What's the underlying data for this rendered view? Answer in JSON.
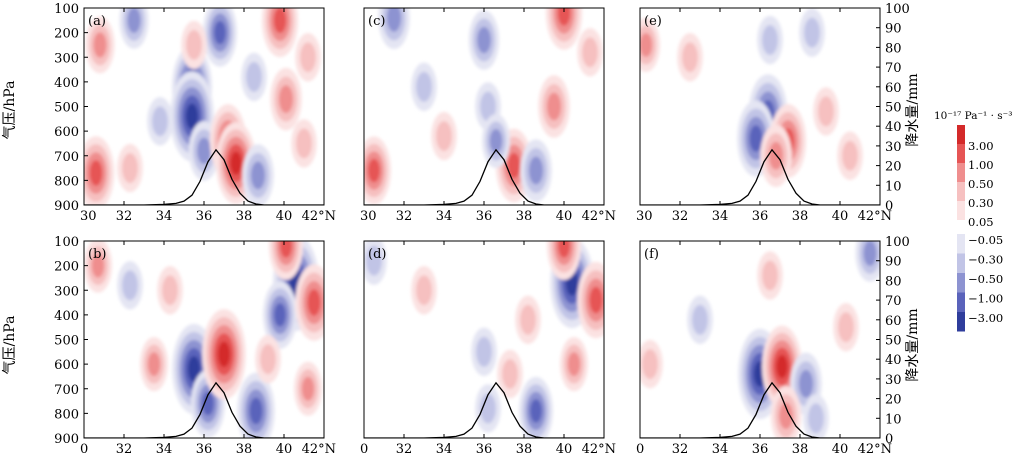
{
  "figure": {
    "y_axis_label": "气压/hPa",
    "right_axis_label": "降水量/mm",
    "colorbar_unit": "10⁻¹⁷ Pa⁻¹ · s⁻³"
  },
  "chart_data": {
    "type": "heatmap",
    "x_ticks": [
      30,
      32,
      34,
      36,
      38,
      40,
      42
    ],
    "x_tick_labels_top_row": [
      "30",
      "32",
      "34",
      "36",
      "38",
      "40",
      "42°N"
    ],
    "x_tick_labels_bottom_row": [
      "0",
      "32",
      "34",
      "36",
      "38",
      "40",
      "42°N"
    ],
    "pressure_ticks": [
      100,
      200,
      300,
      400,
      500,
      600,
      700,
      800,
      900
    ],
    "precip_ticks": [
      0,
      10,
      20,
      30,
      40,
      50,
      60,
      70,
      80,
      90,
      100
    ],
    "colorbar": {
      "positive": [
        {
          "label": "3.00",
          "color": "#d42a2a"
        },
        {
          "label": "1.00",
          "color": "#e65555"
        },
        {
          "label": "0.50",
          "color": "#ef8e8e"
        },
        {
          "label": "0.30",
          "color": "#f6c0c0"
        },
        {
          "label": "0.05",
          "color": "#fbe2e2"
        }
      ],
      "negative": [
        {
          "label": "−0.05",
          "color": "#e4e5f3"
        },
        {
          "label": "−0.30",
          "color": "#c1c4e6"
        },
        {
          "label": "−0.50",
          "color": "#8d93d1"
        },
        {
          "label": "−1.00",
          "color": "#5a63bb"
        },
        {
          "label": "−3.00",
          "color": "#2f3d9c"
        }
      ]
    },
    "panels": [
      {
        "label": "(a)",
        "row": 0,
        "col": 0,
        "precip": {
          "lat": [
            33.0,
            34.0,
            34.6,
            35.0,
            35.4,
            35.8,
            36.2,
            36.6,
            37.0,
            37.4,
            37.8,
            38.2,
            38.6,
            39.0
          ],
          "mm": [
            0,
            0.3,
            0.8,
            2,
            5,
            12,
            22,
            28,
            23,
            13,
            6,
            2,
            0.5,
            0
          ]
        },
        "anomalies": [
          {
            "lat": 32.5,
            "p": 150,
            "value": -0.6
          },
          {
            "lat": 30.8,
            "p": 250,
            "value": 0.6
          },
          {
            "lat": 30.6,
            "p": 770,
            "value": 1.2
          },
          {
            "lat": 32.3,
            "p": 750,
            "value": 0.3
          },
          {
            "lat": 33.8,
            "p": 560,
            "value": -0.3
          },
          {
            "lat": 35.4,
            "p": 420,
            "value": -1.5
          },
          {
            "lat": 35.4,
            "p": 540,
            "value": -1.8
          },
          {
            "lat": 36.0,
            "p": 680,
            "value": -0.7
          },
          {
            "lat": 37.2,
            "p": 640,
            "value": 1.2
          },
          {
            "lat": 37.6,
            "p": 730,
            "value": 1.5
          },
          {
            "lat": 36.8,
            "p": 200,
            "value": -1.0
          },
          {
            "lat": 38.7,
            "p": 780,
            "value": -0.8
          },
          {
            "lat": 40.1,
            "p": 470,
            "value": 0.8
          },
          {
            "lat": 39.8,
            "p": 150,
            "value": 1.2
          },
          {
            "lat": 41.2,
            "p": 300,
            "value": 0.3
          },
          {
            "lat": 41.0,
            "p": 650,
            "value": 0.3
          },
          {
            "lat": 35.5,
            "p": 250,
            "value": 0.3
          },
          {
            "lat": 38.5,
            "p": 380,
            "value": -0.3
          }
        ]
      },
      {
        "label": "(c)",
        "row": 0,
        "col": 1,
        "precip": {
          "lat": [
            33.0,
            34.0,
            34.6,
            35.0,
            35.4,
            35.8,
            36.2,
            36.6,
            37.0,
            37.4,
            37.8,
            38.2,
            38.6,
            39.0
          ],
          "mm": [
            0,
            0.3,
            0.8,
            2,
            5,
            12,
            22,
            28,
            23,
            13,
            6,
            2,
            0.5,
            0
          ]
        },
        "anomalies": [
          {
            "lat": 31.5,
            "p": 140,
            "value": -0.8
          },
          {
            "lat": 30.5,
            "p": 760,
            "value": 1.0
          },
          {
            "lat": 36.0,
            "p": 230,
            "value": -0.7
          },
          {
            "lat": 36.2,
            "p": 500,
            "value": -0.3
          },
          {
            "lat": 37.5,
            "p": 740,
            "value": 1.2
          },
          {
            "lat": 38.6,
            "p": 760,
            "value": -0.8
          },
          {
            "lat": 39.5,
            "p": 500,
            "value": 0.8
          },
          {
            "lat": 40.0,
            "p": 120,
            "value": 1.2
          },
          {
            "lat": 36.6,
            "p": 640,
            "value": -0.5
          },
          {
            "lat": 34.0,
            "p": 620,
            "value": 0.3
          },
          {
            "lat": 41.3,
            "p": 280,
            "value": 0.3
          },
          {
            "lat": 33.0,
            "p": 420,
            "value": -0.3
          }
        ]
      },
      {
        "label": "(e)",
        "row": 0,
        "col": 2,
        "precip": {
          "lat": [
            33.0,
            34.0,
            34.6,
            35.0,
            35.4,
            35.8,
            36.2,
            36.6,
            37.0,
            37.4,
            37.8,
            38.2,
            38.6,
            39.0
          ],
          "mm": [
            0,
            0.3,
            0.8,
            2,
            5,
            12,
            22,
            28,
            23,
            13,
            6,
            2,
            0.5,
            0
          ]
        },
        "anomalies": [
          {
            "lat": 30.3,
            "p": 250,
            "value": 0.5
          },
          {
            "lat": 36.4,
            "p": 530,
            "value": -1.4
          },
          {
            "lat": 35.8,
            "p": 630,
            "value": -1.3
          },
          {
            "lat": 37.4,
            "p": 640,
            "value": 1.2
          },
          {
            "lat": 36.8,
            "p": 700,
            "value": 0.8
          },
          {
            "lat": 36.5,
            "p": 230,
            "value": -0.3
          },
          {
            "lat": 32.5,
            "p": 300,
            "value": 0.3
          },
          {
            "lat": 39.3,
            "p": 520,
            "value": 0.3
          },
          {
            "lat": 40.5,
            "p": 700,
            "value": 0.3
          },
          {
            "lat": 38.6,
            "p": 200,
            "value": -0.3
          }
        ]
      },
      {
        "label": "(b)",
        "row": 1,
        "col": 0,
        "precip": {
          "lat": [
            33.0,
            34.0,
            34.6,
            35.0,
            35.4,
            35.8,
            36.2,
            36.6,
            37.0,
            37.4,
            37.8,
            38.2,
            38.6,
            39.0
          ],
          "mm": [
            0,
            0.3,
            0.8,
            2,
            5,
            12,
            22,
            28,
            23,
            13,
            6,
            2,
            0.5,
            0
          ]
        },
        "anomalies": [
          {
            "lat": 30.7,
            "p": 200,
            "value": 0.5
          },
          {
            "lat": 32.3,
            "p": 280,
            "value": -0.3
          },
          {
            "lat": 33.5,
            "p": 600,
            "value": 0.5
          },
          {
            "lat": 35.5,
            "p": 620,
            "value": -1.8
          },
          {
            "lat": 36.2,
            "p": 760,
            "value": -1.0
          },
          {
            "lat": 37.0,
            "p": 560,
            "value": 1.8
          },
          {
            "lat": 38.6,
            "p": 790,
            "value": -1.3
          },
          {
            "lat": 40.6,
            "p": 270,
            "value": -2.0
          },
          {
            "lat": 39.8,
            "p": 400,
            "value": -1.0
          },
          {
            "lat": 41.5,
            "p": 350,
            "value": 1.3
          },
          {
            "lat": 40.1,
            "p": 120,
            "value": 1.0
          },
          {
            "lat": 41.2,
            "p": 700,
            "value": 0.5
          },
          {
            "lat": 39.2,
            "p": 580,
            "value": 0.3
          },
          {
            "lat": 34.3,
            "p": 300,
            "value": 0.3
          }
        ]
      },
      {
        "label": "(d)",
        "row": 1,
        "col": 1,
        "precip": {
          "lat": [
            33.0,
            34.0,
            34.6,
            35.0,
            35.4,
            35.8,
            36.2,
            36.6,
            37.0,
            37.4,
            37.8,
            38.2,
            38.6,
            39.0
          ],
          "mm": [
            0,
            0.3,
            0.8,
            2,
            5,
            12,
            22,
            28,
            23,
            13,
            6,
            2,
            0.5,
            0
          ]
        },
        "anomalies": [
          {
            "lat": 30.5,
            "p": 180,
            "value": -0.3
          },
          {
            "lat": 40.4,
            "p": 270,
            "value": -1.8
          },
          {
            "lat": 41.6,
            "p": 340,
            "value": 1.3
          },
          {
            "lat": 40.0,
            "p": 120,
            "value": 1.0
          },
          {
            "lat": 38.6,
            "p": 790,
            "value": -1.0
          },
          {
            "lat": 36.0,
            "p": 550,
            "value": -0.3
          },
          {
            "lat": 36.2,
            "p": 780,
            "value": -0.3
          },
          {
            "lat": 37.3,
            "p": 640,
            "value": 0.3
          },
          {
            "lat": 33.0,
            "p": 300,
            "value": 0.3
          },
          {
            "lat": 40.5,
            "p": 600,
            "value": 0.5
          },
          {
            "lat": 38.2,
            "p": 420,
            "value": 0.3
          }
        ]
      },
      {
        "label": "(f)",
        "row": 1,
        "col": 2,
        "precip": {
          "lat": [
            33.0,
            34.0,
            34.6,
            35.0,
            35.4,
            35.8,
            36.2,
            36.6,
            37.0,
            37.4,
            37.8,
            38.2,
            38.6,
            39.0
          ],
          "mm": [
            0,
            0.3,
            0.8,
            2,
            5,
            12,
            22,
            28,
            23,
            13,
            6,
            2,
            0.5,
            0
          ]
        },
        "anomalies": [
          {
            "lat": 36.0,
            "p": 640,
            "value": -1.8
          },
          {
            "lat": 37.1,
            "p": 610,
            "value": 1.5
          },
          {
            "lat": 38.3,
            "p": 680,
            "value": -0.8
          },
          {
            "lat": 37.3,
            "p": 810,
            "value": 0.7
          },
          {
            "lat": 38.8,
            "p": 820,
            "value": -0.3
          },
          {
            "lat": 40.3,
            "p": 450,
            "value": 0.3
          },
          {
            "lat": 41.5,
            "p": 150,
            "value": -0.6
          },
          {
            "lat": 36.5,
            "p": 240,
            "value": 0.3
          },
          {
            "lat": 33.0,
            "p": 420,
            "value": -0.3
          },
          {
            "lat": 30.5,
            "p": 600,
            "value": 0.3
          }
        ]
      }
    ]
  }
}
